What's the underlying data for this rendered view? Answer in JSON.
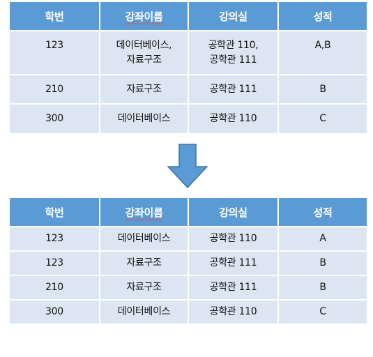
{
  "table_before": {
    "headers": [
      "학번",
      "강좌이름",
      "강의실",
      "성적"
    ],
    "rows": [
      {
        "id": "123",
        "course": [
          "데이터베이스,",
          "자료구조"
        ],
        "room": [
          "공학관 110,",
          "공학관 111"
        ],
        "grade": "A,B"
      },
      {
        "id": "210",
        "course": [
          "자료구조"
        ],
        "room": [
          "공학관 111"
        ],
        "grade": "B"
      },
      {
        "id": "300",
        "course": [
          "데이터베이스"
        ],
        "room": [
          "공학관 110"
        ],
        "grade": "C"
      }
    ]
  },
  "table_after": {
    "headers": [
      "학번",
      "강좌이름",
      "강의실",
      "성적"
    ],
    "rows": [
      {
        "id": "123",
        "course": "데이터베이스",
        "room": "공학관 110",
        "grade": "A"
      },
      {
        "id": "123",
        "course": "자료구조",
        "room": "공학관 111",
        "grade": "B"
      },
      {
        "id": "210",
        "course": "자료구조",
        "room": "공학관 111",
        "grade": "B"
      },
      {
        "id": "300",
        "course": "데이터베이스",
        "room": "공학관 110",
        "grade": "C"
      }
    ]
  },
  "arrow": {
    "icon": "down-arrow-icon",
    "color": "#5b9bd5",
    "stroke": "#41719c"
  },
  "colors": {
    "header_bg": "#5b9bd5",
    "cell_bg": "#dce6f2"
  }
}
